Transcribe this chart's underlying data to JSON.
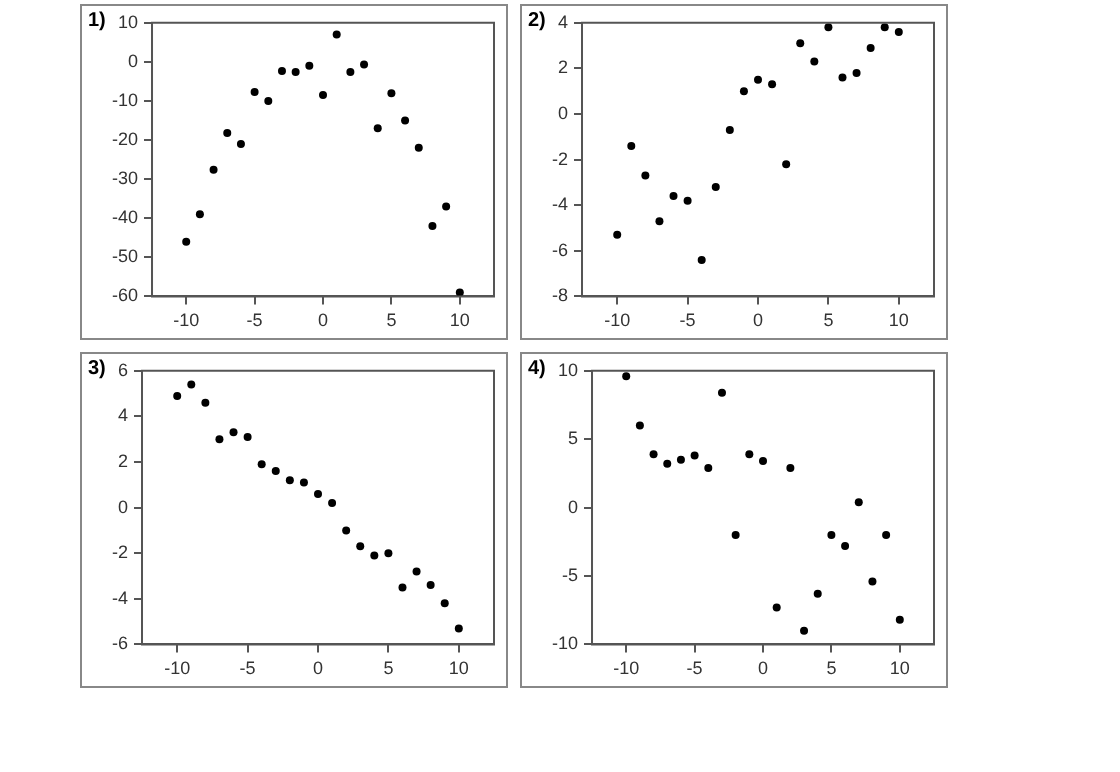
{
  "chart_data": [
    {
      "type": "scatter",
      "title": "1)",
      "x": [
        -10,
        -9,
        -8,
        -7,
        -6,
        -5,
        -4,
        -3,
        -2,
        -1,
        0,
        1,
        2,
        3,
        4,
        5,
        6,
        7,
        8,
        9,
        10
      ],
      "series": [
        {
          "color": "#000000",
          "values": [
            -46,
            -39,
            -27.6,
            -18.2,
            -21,
            -7.7,
            -10,
            -2.3,
            -2.6,
            -1,
            -8.5,
            7,
            -2.6,
            -0.7,
            -17,
            -8,
            -15,
            -22,
            -42,
            -37,
            -59
          ]
        }
      ],
      "xlim": [
        -12.5,
        12.5
      ],
      "xticks": [
        -10,
        -5,
        0,
        5,
        10
      ],
      "ylim": [
        -60,
        10
      ],
      "yticks": [
        -60,
        -50,
        -40,
        -30,
        -20,
        -10,
        0,
        10
      ],
      "grid": false,
      "legend": false,
      "marker": "circle"
    },
    {
      "type": "scatter",
      "title": "2)",
      "x": [
        -10,
        -9,
        -8,
        -7,
        -6,
        -5,
        -4,
        -3,
        -2,
        -1,
        0,
        1,
        2,
        3,
        4,
        5,
        6,
        7,
        8,
        9,
        10
      ],
      "series": [
        {
          "color": "#000000",
          "values": [
            -5.3,
            -1.4,
            -2.7,
            -4.7,
            -3.6,
            -3.8,
            -6.4,
            -3.2,
            -0.7,
            1.0,
            1.5,
            1.3,
            -2.2,
            3.1,
            2.3,
            3.8,
            1.6,
            1.8,
            2.9,
            3.8,
            3.6
          ]
        }
      ],
      "xlim": [
        -12.5,
        12.5
      ],
      "xticks": [
        -10,
        -5,
        0,
        5,
        10
      ],
      "ylim": [
        -8,
        4
      ],
      "yticks": [
        -8,
        -6,
        -4,
        -2,
        0,
        2,
        4
      ],
      "grid": false,
      "legend": false,
      "marker": "circle"
    },
    {
      "type": "scatter",
      "title": "3)",
      "x": [
        -10,
        -9,
        -8,
        -7,
        -6,
        -5,
        -4,
        -3,
        -2,
        -1,
        0,
        1,
        2,
        3,
        4,
        5,
        6,
        7,
        8,
        9,
        10
      ],
      "series": [
        {
          "color": "#000000",
          "values": [
            4.9,
            5.4,
            4.6,
            3.0,
            3.3,
            3.1,
            1.9,
            1.6,
            1.2,
            1.1,
            0.6,
            0.2,
            -1.0,
            -1.7,
            -2.1,
            -2.0,
            -3.5,
            -2.8,
            -3.4,
            -4.2,
            -5.3
          ]
        }
      ],
      "xlim": [
        -12.5,
        12.5
      ],
      "xticks": [
        -10,
        -5,
        0,
        5,
        10
      ],
      "ylim": [
        -6,
        6
      ],
      "yticks": [
        -6,
        -4,
        -2,
        0,
        2,
        4,
        6
      ],
      "grid": false,
      "legend": false,
      "marker": "circle"
    },
    {
      "type": "scatter",
      "title": "4)",
      "x": [
        -10,
        -9,
        -8,
        -7,
        -6,
        -5,
        -4,
        -3,
        -2,
        -1,
        0,
        1,
        2,
        3,
        4,
        5,
        6,
        7,
        8,
        9,
        10
      ],
      "series": [
        {
          "color": "#000000",
          "values": [
            9.6,
            6.0,
            3.9,
            3.2,
            3.5,
            3.8,
            2.9,
            8.4,
            -2.0,
            3.9,
            3.4,
            -7.3,
            2.9,
            -9.0,
            -6.3,
            -2.0,
            -2.8,
            0.4,
            -5.4,
            -2.0,
            -8.2
          ]
        }
      ],
      "xlim": [
        -12.5,
        12.5
      ],
      "xticks": [
        -10,
        -5,
        0,
        5,
        10
      ],
      "ylim": [
        -10,
        10
      ],
      "yticks": [
        -10,
        -5,
        0,
        5,
        10
      ],
      "grid": false,
      "legend": false,
      "marker": "circle"
    }
  ]
}
